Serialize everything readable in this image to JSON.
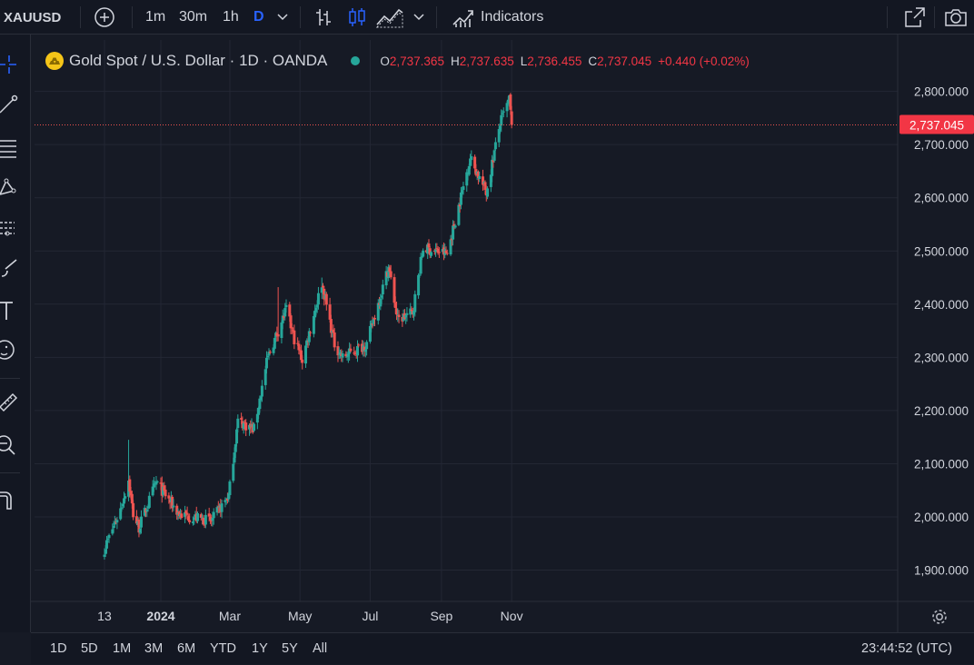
{
  "toolbar": {
    "symbol": "XAUUSD",
    "intervals": [
      "1m",
      "30m",
      "1h",
      "D"
    ],
    "indicators_label": "Indicators"
  },
  "legend": {
    "title": "Gold Spot / U.S. Dollar · 1D · OANDA",
    "open_label": "O",
    "open_value": "2,737.365",
    "high_label": "H",
    "high_value": "2,737.635",
    "low_label": "L",
    "low_value": "2,736.455",
    "close_label": "C",
    "close_value": "2,737.045",
    "change": "+0.440 (+0.02%)"
  },
  "price_badge": "2,737.045",
  "bottom": {
    "ranges": [
      "1D",
      "5D",
      "1M",
      "3M",
      "6M",
      "YTD",
      "1Y",
      "5Y",
      "All"
    ],
    "clock": "23:44:52 (UTC)"
  },
  "colors": {
    "up": "#26a69a",
    "down": "#ef5350",
    "background": "#161a25",
    "toolbar": "#131722",
    "text": "#d1d4dc",
    "accent": "#2962ff",
    "grid": "#232734"
  },
  "icons": {
    "toolbar": [
      "add-symbol-icon",
      "bar-style-icon",
      "candle-style-icon",
      "area-style-icon",
      "indicators-icon",
      "fullscreen-icon",
      "camera-icon"
    ],
    "left": [
      "crosshair-icon",
      "trendline-icon",
      "fib-icon",
      "pattern-icon",
      "forecast-icon",
      "brush-icon",
      "text-icon",
      "emoji-icon",
      "ruler-icon",
      "zoom-icon",
      "magnet-icon"
    ]
  },
  "chart_data": {
    "type": "candlestick",
    "symbol": "Gold Spot / U.S. Dollar",
    "interval": "1D",
    "y_ticks": [
      "1,900.000",
      "2,000.000",
      "2,100.000",
      "2,200.000",
      "2,300.000",
      "2,400.000",
      "2,500.000",
      "2,600.000",
      "2,700.000",
      "2,800.000"
    ],
    "ylim": [
      1850,
      2850
    ],
    "x_ticks": [
      "13",
      "2024",
      "Mar",
      "May",
      "Jul",
      "Sep",
      "Nov"
    ],
    "last_price": 2737.045,
    "approx_closes": [
      [
        "2023-11-13",
        1940
      ],
      [
        "2023-11-27",
        2015
      ],
      [
        "2023-12-04",
        2070
      ],
      [
        "2023-12-08",
        2005
      ],
      [
        "2023-12-13",
        1980
      ],
      [
        "2023-12-28",
        2065
      ],
      [
        "2024-01-17",
        2005
      ],
      [
        "2024-02-14",
        1992
      ],
      [
        "2024-02-29",
        2040
      ],
      [
        "2024-03-08",
        2180
      ],
      [
        "2024-03-22",
        2165
      ],
      [
        "2024-04-03",
        2300
      ],
      [
        "2024-04-12",
        2350
      ],
      [
        "2024-04-19",
        2390
      ],
      [
        "2024-04-26",
        2335
      ],
      [
        "2024-05-03",
        2295
      ],
      [
        "2024-05-20",
        2440
      ],
      [
        "2024-05-31",
        2325
      ],
      [
        "2024-06-07",
        2300
      ],
      [
        "2024-06-28",
        2325
      ],
      [
        "2024-07-17",
        2470
      ],
      [
        "2024-07-25",
        2370
      ],
      [
        "2024-08-07",
        2385
      ],
      [
        "2024-08-16",
        2505
      ],
      [
        "2024-09-06",
        2495
      ],
      [
        "2024-09-26",
        2675
      ],
      [
        "2024-10-10",
        2610
      ],
      [
        "2024-10-22",
        2740
      ],
      [
        "2024-10-30",
        2785
      ],
      [
        "2024-11-01",
        2737
      ]
    ]
  }
}
